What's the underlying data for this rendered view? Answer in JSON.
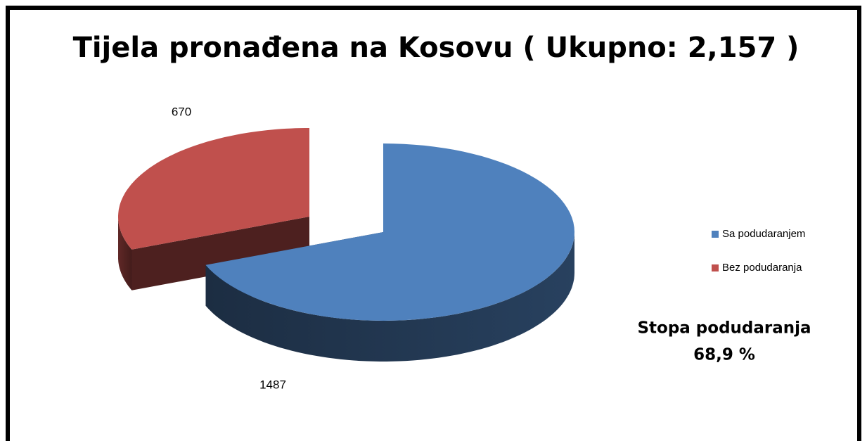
{
  "chart_data": {
    "type": "pie",
    "title": "Tijela pronađena na Kosovu ( Ukupno: 2,157 )",
    "categories": [
      "Sa podudaranjem",
      "Bez podudaranja"
    ],
    "values": [
      1487,
      670
    ],
    "colors": [
      "#4f81bd",
      "#c0504d"
    ],
    "legend": "right",
    "annotation": [
      "Stopa podudaranja",
      "68,9 %"
    ]
  }
}
